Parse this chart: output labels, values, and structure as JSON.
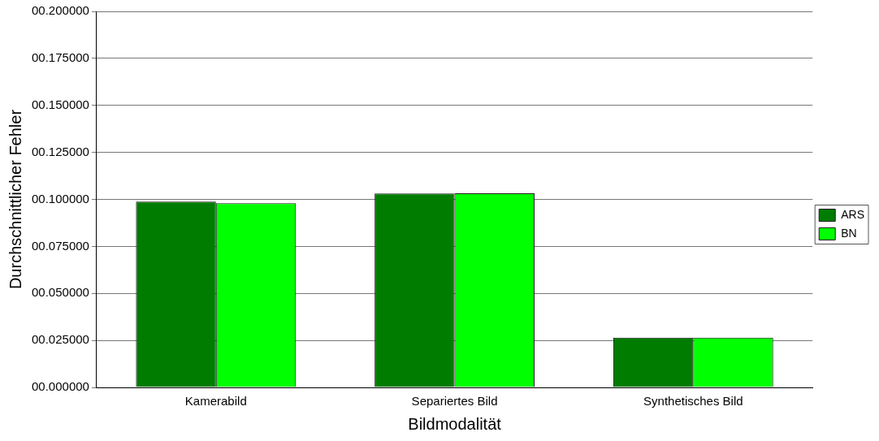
{
  "chart_data": {
    "type": "bar",
    "xlabel": "Bildmodalität",
    "ylabel": "Durchschnittlicher Fehler",
    "categories": [
      "Kamerabild",
      "Separiertes Bild",
      "Synthetisches Bild"
    ],
    "series": [
      {
        "name": "ARS",
        "color": "#007c00",
        "values": [
          0.0988,
          0.1031,
          0.0265
        ]
      },
      {
        "name": "BN",
        "color": "#00ff00",
        "values": [
          0.0979,
          0.1032,
          0.0265
        ]
      }
    ],
    "ylim": [
      0,
      0.2
    ],
    "yticks": [
      {
        "value": 0,
        "label": "00.000000"
      },
      {
        "value": 0.025,
        "label": "00.025000"
      },
      {
        "value": 0.05,
        "label": "00.050000"
      },
      {
        "value": 0.075,
        "label": "00.075000"
      },
      {
        "value": 0.1,
        "label": "00.100000"
      },
      {
        "value": 0.125,
        "label": "00.125000"
      },
      {
        "value": 0.15,
        "label": "00.150000"
      },
      {
        "value": 0.175,
        "label": "00.175000"
      },
      {
        "value": 0.2,
        "label": "00.200000"
      }
    ],
    "grid": "y",
    "legend": "right"
  }
}
